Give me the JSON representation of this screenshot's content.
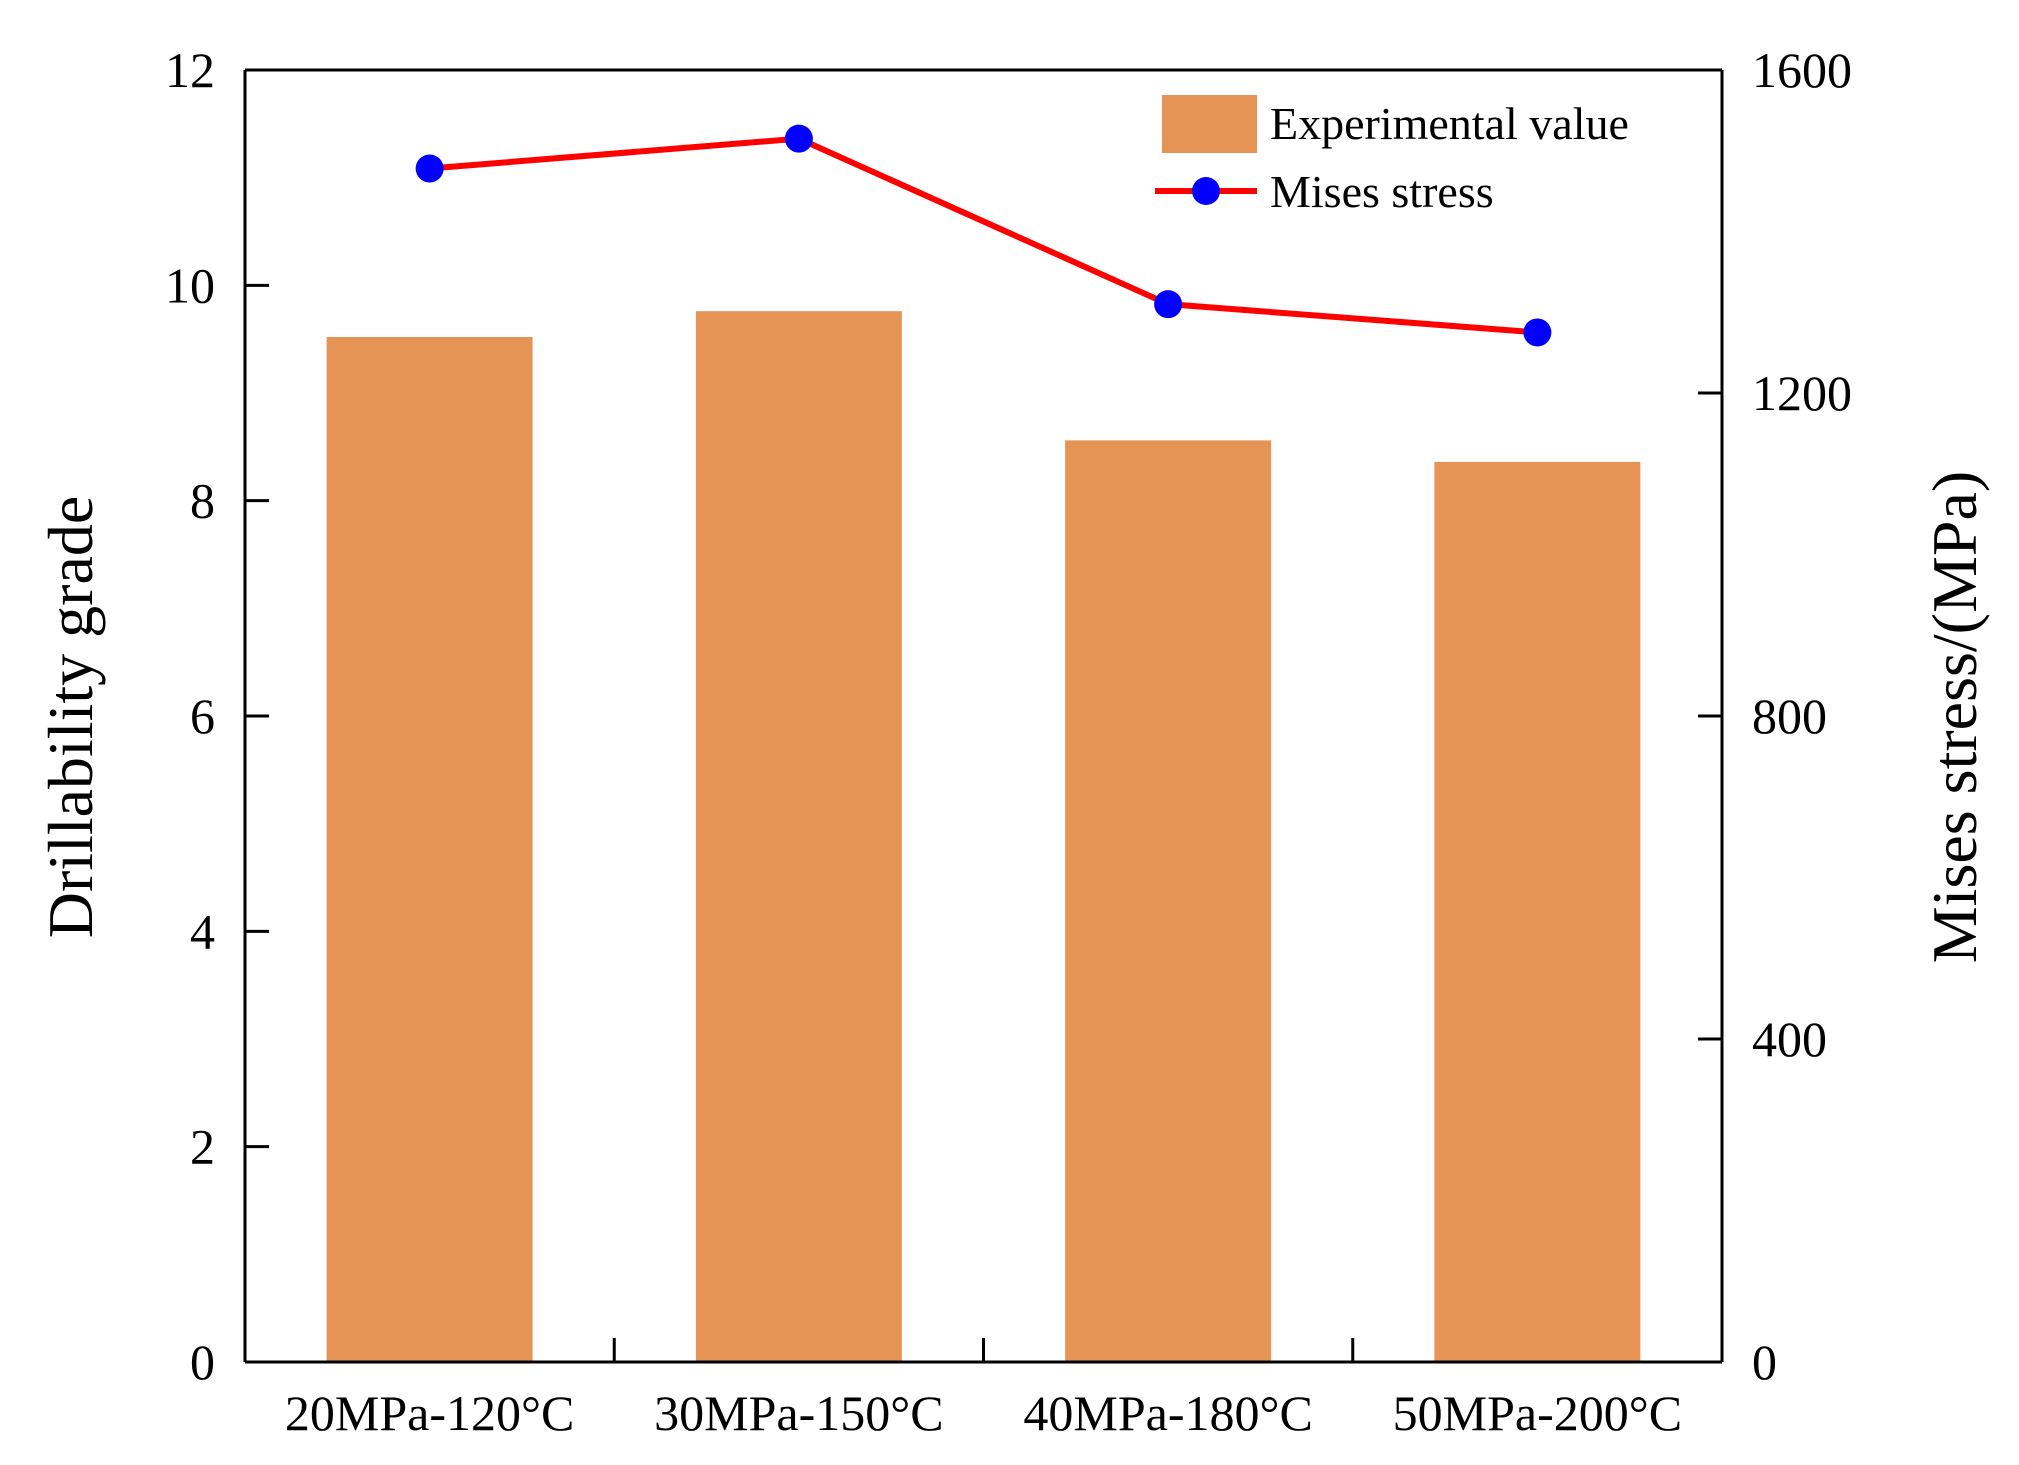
{
  "chart_data": {
    "type": "bar",
    "categories": [
      "20MPa-120°C",
      "30MPa-150°C",
      "40MPa-180°C",
      "50MPa-200°C"
    ],
    "series": [
      {
        "name": "Experimental value",
        "type": "bar",
        "axis": "left",
        "values": [
          9.52,
          9.76,
          8.56,
          8.36
        ],
        "color": "#E69455"
      },
      {
        "name": "Mises stress",
        "type": "line",
        "axis": "right",
        "values": [
          1478,
          1515,
          1310,
          1275
        ],
        "color": "#FF0000",
        "marker_color": "#0000FF"
      }
    ],
    "ylabel": "Drillability grade",
    "ylim": [
      0,
      12
    ],
    "yticks": [
      "0",
      "2",
      "4",
      "6",
      "8",
      "10",
      "12"
    ],
    "y2label": "Mises stress/(MPa)",
    "y2lim": [
      0,
      1600
    ],
    "y2ticks": [
      "0",
      "400",
      "800",
      "1200",
      "1600"
    ],
    "legend_position": "top-right",
    "grid": false
  }
}
